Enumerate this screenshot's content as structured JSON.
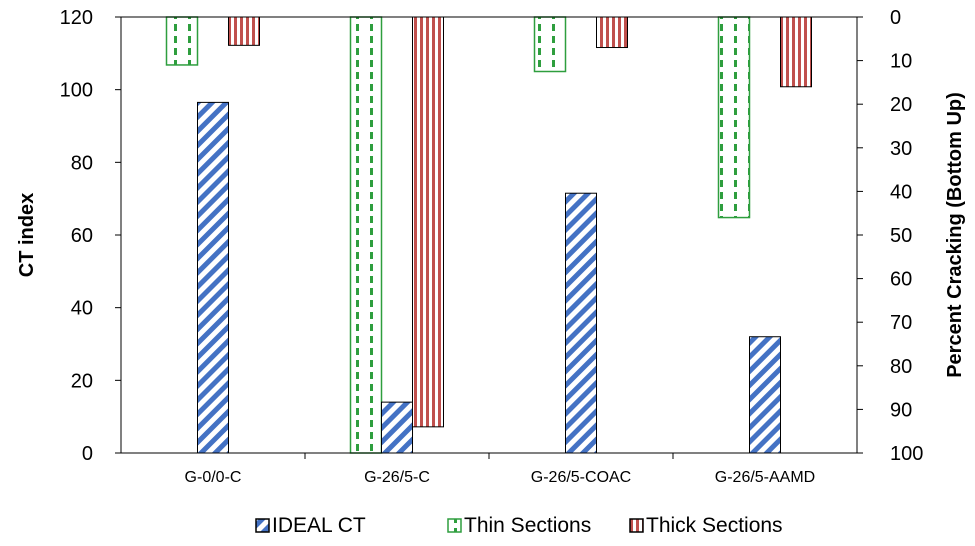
{
  "chart_data": {
    "type": "bar",
    "categories": [
      "G-0/0-C",
      "G-26/5-C",
      "G-26/5-COAC",
      "G-26/5-AAMD"
    ],
    "series": [
      {
        "name": "IDEAL CT",
        "axis": "left",
        "values": [
          96.5,
          14,
          71.5,
          32
        ],
        "color": "#4472C4",
        "pattern": "diagonal-stripes"
      },
      {
        "name": "Thin Sections",
        "axis": "right",
        "direction": "top-down",
        "values": [
          11,
          100,
          12.5,
          46
        ],
        "color": "#2E9E3E",
        "pattern": "dashed-vertical"
      },
      {
        "name": "Thick Sections",
        "axis": "right",
        "direction": "top-down",
        "values": [
          6.5,
          94,
          7,
          16
        ],
        "color": "#C0504D",
        "pattern": "vertical-stripes"
      }
    ],
    "ylabel": "CT index",
    "ylim": [
      0,
      120
    ],
    "yticks": [
      "0",
      "20",
      "40",
      "60",
      "80",
      "100",
      "120"
    ],
    "y2label": "Percent Cracking (Bottom Up)",
    "y2lim": [
      0,
      100
    ],
    "y2reversed": true,
    "y2ticks": [
      "0",
      "10",
      "20",
      "30",
      "40",
      "50",
      "60",
      "70",
      "80",
      "90",
      "100"
    ],
    "grid": false,
    "legend": "bottom"
  }
}
